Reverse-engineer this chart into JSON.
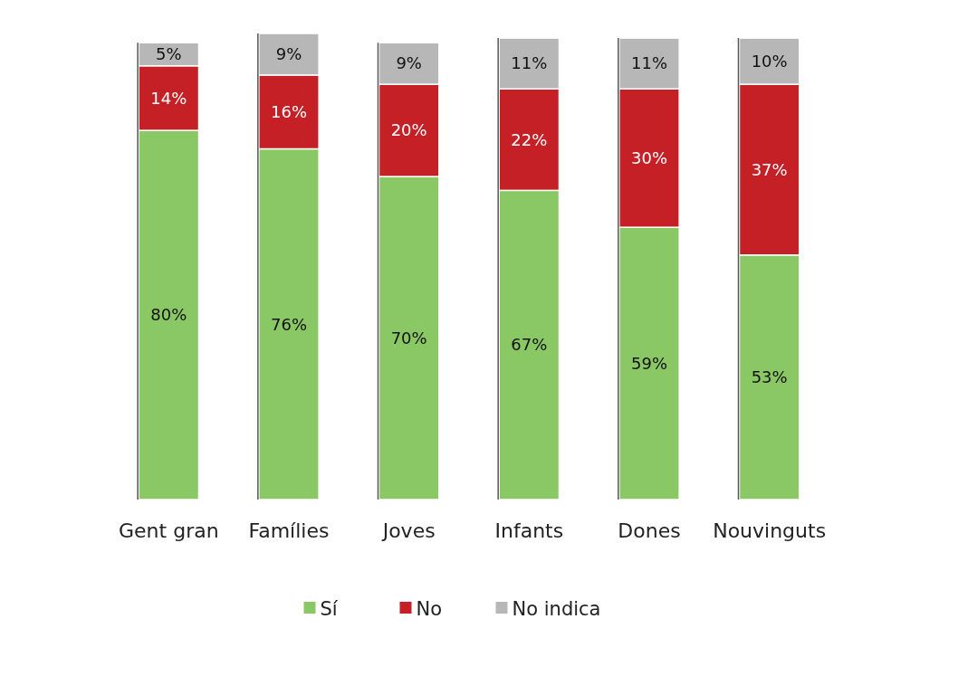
{
  "chart_data": {
    "type": "bar",
    "stacked": true,
    "legend": "bottom",
    "categories": [
      "Gent gran",
      "Famílies",
      "Joves",
      "Infants",
      "Dones",
      "Nouvinguts"
    ],
    "series": [
      {
        "name": "Sí",
        "color": "#8ac765",
        "values": [
          80,
          76,
          70,
          67,
          59,
          53
        ],
        "value_labels": [
          "80%",
          "76%",
          "70%",
          "67%",
          "59%",
          "53%"
        ]
      },
      {
        "name": "No",
        "color": "#c42026",
        "values": [
          14,
          16,
          20,
          22,
          30,
          37
        ],
        "value_labels": [
          "14%",
          "16%",
          "20%",
          "22%",
          "30%",
          "37%"
        ]
      },
      {
        "name": "No indica",
        "color": "#b7b7b7",
        "values": [
          5,
          9,
          9,
          11,
          11,
          10
        ],
        "value_labels": [
          "5%",
          "9%",
          "9%",
          "11%",
          "11%",
          "10%"
        ]
      }
    ]
  }
}
